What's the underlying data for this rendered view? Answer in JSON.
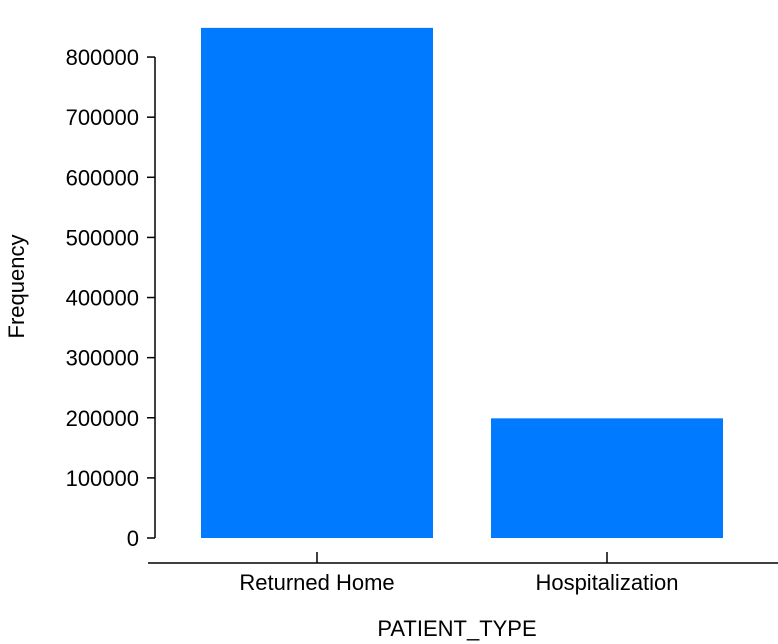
{
  "chart_data": {
    "type": "bar",
    "title": "",
    "xlabel": "PATIENT_TYPE",
    "ylabel": "Frequency",
    "categories": [
      "Returned Home",
      "Hospitalization"
    ],
    "values": [
      848544,
      199031
    ],
    "ylim": [
      0,
      850000
    ],
    "yticks": [
      0,
      100000,
      200000,
      300000,
      400000,
      500000,
      600000,
      700000,
      800000
    ],
    "ytick_labels": [
      "0",
      "100000",
      "200000",
      "300000",
      "400000",
      "500000",
      "600000",
      "700000",
      "800000"
    ],
    "grid": false,
    "legend": "none",
    "bar_color": "#007bff"
  }
}
